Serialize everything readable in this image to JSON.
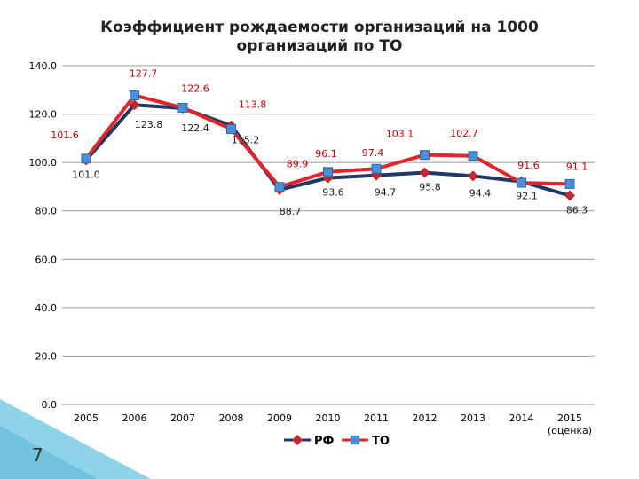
{
  "slide_number": "7",
  "chart_data": {
    "type": "line",
    "title": "Коэффициент рождаемости организаций на 1000 организаций по ТО",
    "title_lines": [
      "Коэффициент рождаемости организаций на 1000",
      "организаций по ТО"
    ],
    "categories": [
      "2005",
      "2006",
      "2007",
      "2008",
      "2009",
      "2010",
      "2011",
      "2012",
      "2013",
      "2014",
      "2015"
    ],
    "category_sublabels": [
      "",
      "",
      "",
      "",
      "",
      "",
      "",
      "",
      "",
      "",
      "(оценка)"
    ],
    "y_ticks": [
      "0.0",
      "20.0",
      "40.0",
      "60.0",
      "80.0",
      "100.0",
      "120.0",
      "140.0"
    ],
    "ylim": [
      0,
      140
    ],
    "grid": true,
    "legend_position": "bottom",
    "series": [
      {
        "name": "РФ",
        "color": "#1f3864",
        "marker_color": "#c0282d",
        "marker": "diamond",
        "label_color": "#1a1a1a",
        "values": [
          101.0,
          123.8,
          122.4,
          115.2,
          88.7,
          93.6,
          94.7,
          95.8,
          94.4,
          92.1,
          86.3
        ],
        "labels": [
          "101.0",
          "123.8",
          "122.4",
          "115.2",
          "88.7",
          "93.6",
          "94.7",
          "95.8",
          "94.4",
          "92.1",
          "86.3"
        ]
      },
      {
        "name": "ТО",
        "color": "#e0262b",
        "marker_color": "#4a90d9",
        "marker": "square",
        "label_color": "#c00000",
        "values": [
          101.6,
          127.7,
          122.6,
          113.8,
          89.9,
          96.1,
          97.4,
          103.1,
          102.7,
          91.6,
          91.1
        ],
        "labels": [
          "101.6",
          "127.7",
          "122.6",
          "113.8",
          "89.9",
          "96.1",
          "97.4",
          "103.1",
          "102.7",
          "91.6",
          "91.1"
        ]
      }
    ]
  }
}
